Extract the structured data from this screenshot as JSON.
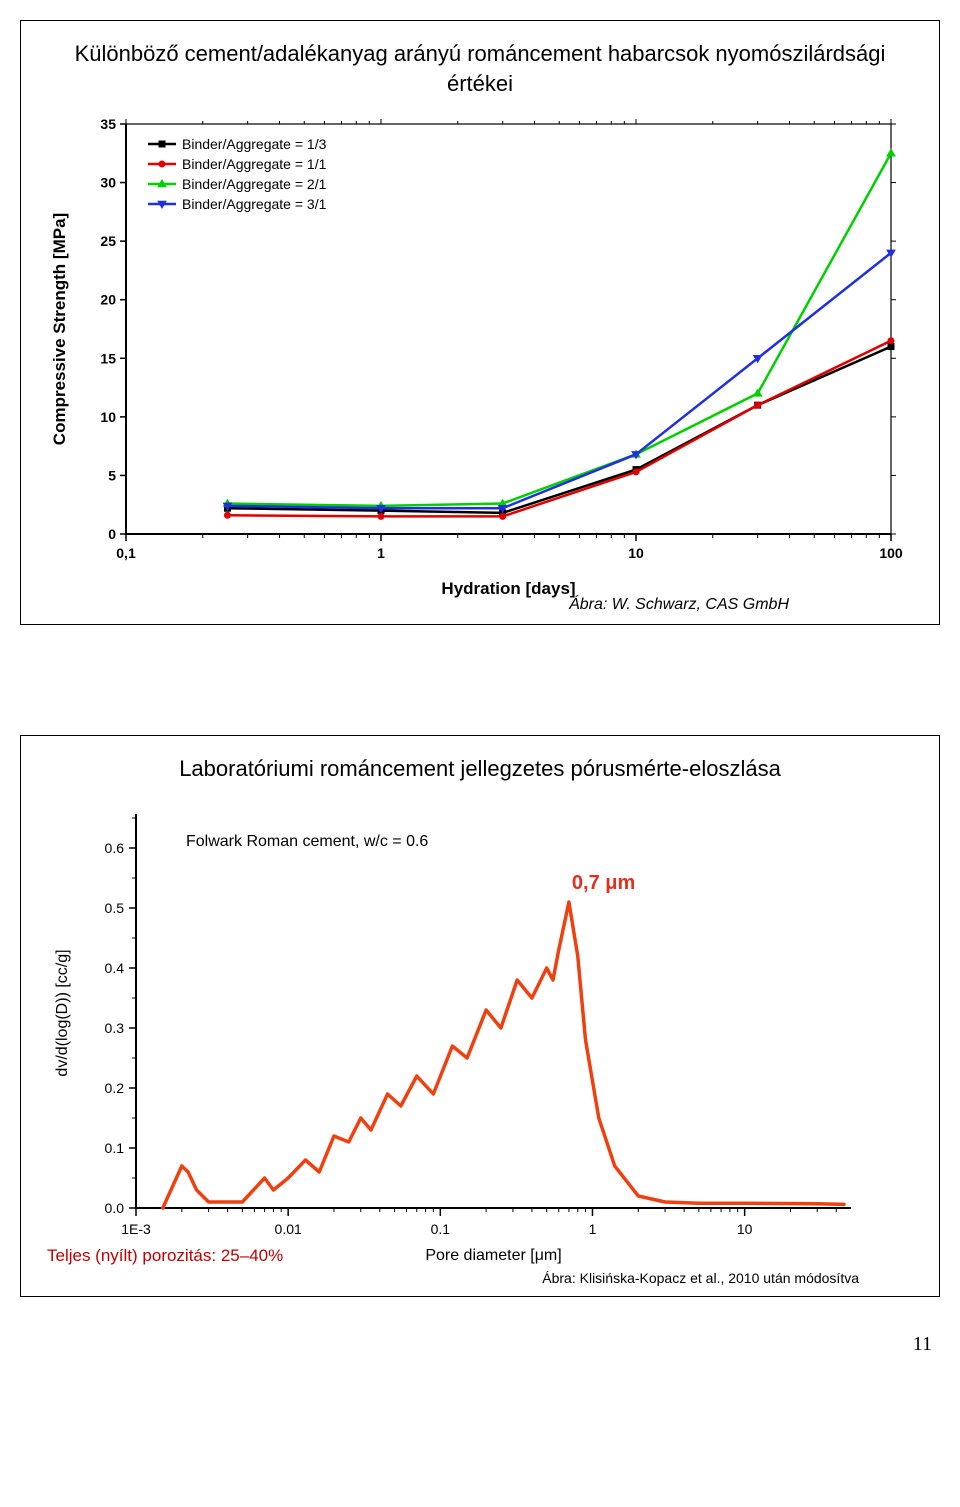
{
  "page_number": "11",
  "slide1": {
    "title": "Különböző cement/adalékanyag arányú románcement habarcsok nyomószilárdsági értékei",
    "caption": "Ábra: W. Schwarz, CAS GmbH",
    "chart": {
      "type": "line",
      "xscale": "log",
      "xlabel": "Hydration [days]",
      "ylabel": "Compressive Strength [MPa]",
      "label_fontsize": 17,
      "label_fontweight": "bold",
      "xlim": [
        0.1,
        100
      ],
      "ylim": [
        0,
        35
      ],
      "xtick_labels": [
        "0,1",
        "1",
        "10",
        "100"
      ],
      "xtick_values": [
        0.1,
        1,
        10,
        100
      ],
      "ytick_values": [
        0,
        5,
        10,
        15,
        20,
        25,
        30,
        35
      ],
      "tick_fontsize": 14,
      "background_color": "#ffffff",
      "axis_color": "#000000",
      "grid_on": false,
      "legend_position": "top-left-inside",
      "legend_fontsize": 14,
      "marker_size": 6,
      "line_width": 2.5,
      "series": [
        {
          "name": "Binder/Aggregate = 1/3",
          "color": "#000000",
          "marker": "square",
          "x": [
            0.25,
            1,
            3,
            10,
            30,
            100
          ],
          "y": [
            2.2,
            2.0,
            1.8,
            5.5,
            11.0,
            16.0
          ]
        },
        {
          "name": "Binder/Aggregate = 1/1",
          "color": "#e00000",
          "marker": "circle",
          "x": [
            0.25,
            1,
            3,
            10,
            30,
            100
          ],
          "y": [
            1.6,
            1.5,
            1.5,
            5.3,
            11.0,
            16.5
          ]
        },
        {
          "name": "Binder/Aggregate = 2/1",
          "color": "#00d000",
          "marker": "triangle-up",
          "x": [
            0.25,
            1,
            3,
            10,
            30,
            100
          ],
          "y": [
            2.6,
            2.4,
            2.6,
            6.8,
            12.0,
            32.5
          ]
        },
        {
          "name": "Binder/Aggregate = 3/1",
          "color": "#2030e0",
          "marker": "triangle-down",
          "x": [
            0.25,
            1,
            3,
            10,
            30,
            100
          ],
          "y": [
            2.4,
            2.2,
            2.2,
            6.8,
            15.0,
            24.0
          ]
        }
      ]
    }
  },
  "slide2": {
    "title": "Laboratóriumi románcement jellegzetes pórusmérte-eloszlása",
    "caption": "Ábra: Klisińska-Kopacz et al., 2010 után módosítva",
    "porosity_note": "Teljes (nyílt) porozitás: 25–40%",
    "annotation": "0,7 μm",
    "chart": {
      "type": "line",
      "xscale": "log",
      "xlabel": "Pore diameter [μm]",
      "ylabel": "dv/d(log(D)) [cc/g]",
      "label_fontsize": 16,
      "xlim": [
        0.001,
        50
      ],
      "ylim": [
        0.0,
        0.65
      ],
      "xtick_labels": [
        "1E-3",
        "0.01",
        "0.1",
        "1",
        "10"
      ],
      "xtick_values": [
        0.001,
        0.01,
        0.1,
        1,
        10
      ],
      "ytick_values": [
        0.0,
        0.1,
        0.2,
        0.3,
        0.4,
        0.5,
        0.6
      ],
      "ytick_labels": [
        "0.0",
        "0.1",
        "0.2",
        "0.3",
        "0.4",
        "0.5",
        "0.6"
      ],
      "tick_fontsize": 14,
      "background_color": "#ffffff",
      "axis_color": "#000000",
      "series_color": "#f04010",
      "line_width": 3.5,
      "annotation_color": "#e03020",
      "legend_text": "Folwark Roman cement, w/c = 0.6",
      "legend_fontsize": 16,
      "series_xy": [
        [
          0.0015,
          0.0
        ],
        [
          0.002,
          0.07
        ],
        [
          0.0022,
          0.06
        ],
        [
          0.0025,
          0.03
        ],
        [
          0.003,
          0.01
        ],
        [
          0.005,
          0.01
        ],
        [
          0.007,
          0.05
        ],
        [
          0.008,
          0.03
        ],
        [
          0.01,
          0.05
        ],
        [
          0.013,
          0.08
        ],
        [
          0.016,
          0.06
        ],
        [
          0.02,
          0.12
        ],
        [
          0.025,
          0.11
        ],
        [
          0.03,
          0.15
        ],
        [
          0.035,
          0.13
        ],
        [
          0.045,
          0.19
        ],
        [
          0.055,
          0.17
        ],
        [
          0.07,
          0.22
        ],
        [
          0.09,
          0.19
        ],
        [
          0.12,
          0.27
        ],
        [
          0.15,
          0.25
        ],
        [
          0.2,
          0.33
        ],
        [
          0.25,
          0.3
        ],
        [
          0.32,
          0.38
        ],
        [
          0.4,
          0.35
        ],
        [
          0.5,
          0.4
        ],
        [
          0.55,
          0.38
        ],
        [
          0.6,
          0.43
        ],
        [
          0.7,
          0.51
        ],
        [
          0.8,
          0.42
        ],
        [
          0.9,
          0.28
        ],
        [
          1.1,
          0.15
        ],
        [
          1.4,
          0.07
        ],
        [
          2.0,
          0.02
        ],
        [
          3.0,
          0.01
        ],
        [
          5.0,
          0.008
        ],
        [
          10,
          0.008
        ],
        [
          30,
          0.007
        ],
        [
          45,
          0.006
        ]
      ]
    }
  }
}
